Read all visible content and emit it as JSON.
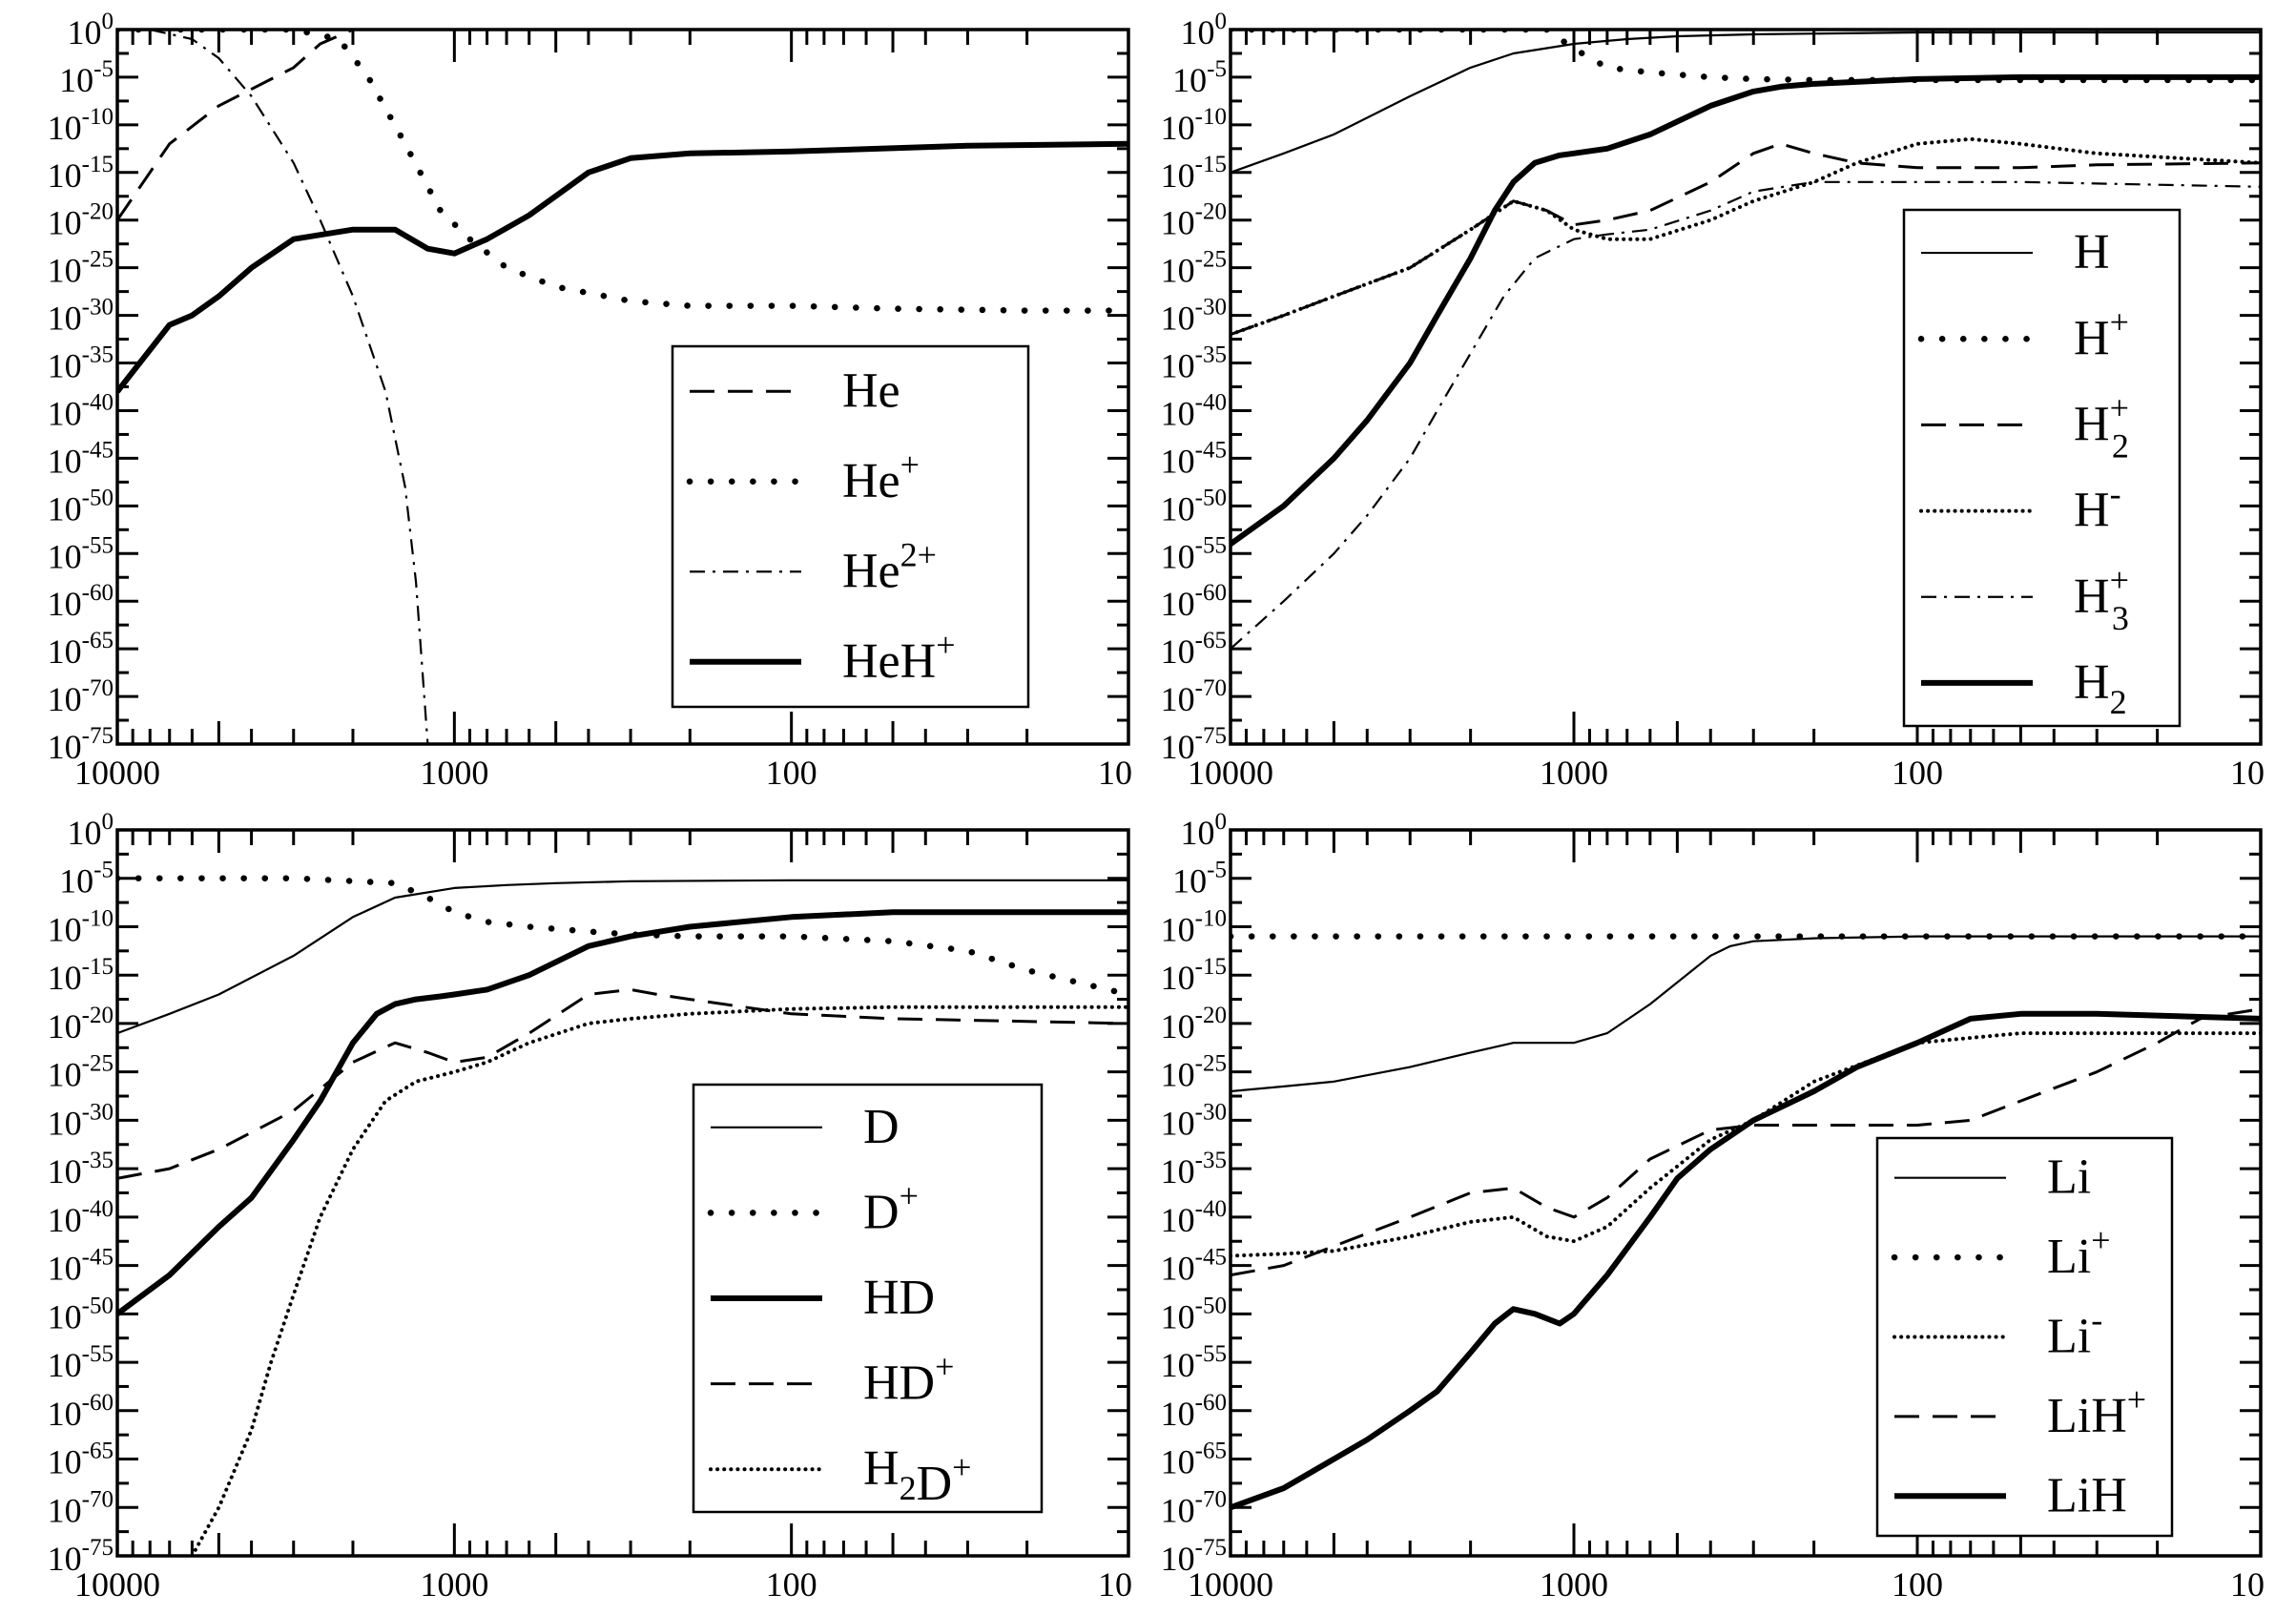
{
  "chart_data": [
    {
      "id": "helium",
      "type": "line",
      "xlim": [
        10000,
        10
      ],
      "ylim": [
        -75,
        0
      ],
      "x_ticks": [
        "10000",
        "1000",
        "100",
        "10"
      ],
      "y_ticks_exp": [
        "0",
        "-5",
        "-10",
        "-15",
        "-20",
        "-25",
        "-30",
        "-35",
        "-40",
        "-45",
        "-50",
        "-55",
        "-60",
        "-65",
        "-70",
        "-75"
      ],
      "legend_position": "bottom-right",
      "series": [
        {
          "name": "He",
          "name_parts": [
            [
              "He",
              "",
              ""
            ]
          ],
          "style": "dashed",
          "x": [
            10000,
            7000,
            5000,
            3000,
            2500,
            2000,
            1000,
            100,
            10
          ],
          "y": [
            -20,
            -12,
            -8,
            -4,
            -1.5,
            0,
            0,
            0,
            0
          ]
        },
        {
          "name": "He+",
          "name_parts": [
            [
              "He",
              "",
              "+"
            ]
          ],
          "style": "dotted",
          "x": [
            10000,
            5000,
            3000,
            2200,
            1800,
            1400,
            1100,
            900,
            700,
            500,
            300,
            200,
            100,
            50,
            20,
            10
          ],
          "y": [
            0,
            0,
            0,
            -1,
            -5,
            -12,
            -19,
            -22,
            -25,
            -27,
            -28.5,
            -29,
            -29,
            -29.3,
            -29.5,
            -29.5
          ]
        },
        {
          "name": "He2+",
          "name_parts": [
            [
              "He",
              "",
              "2+"
            ]
          ],
          "style": "dashdot",
          "x": [
            10000,
            8000,
            6000,
            5000,
            4000,
            3000,
            2500,
            2000,
            1600,
            1400,
            1300,
            1200
          ],
          "y": [
            0,
            0,
            -1,
            -3,
            -7,
            -14,
            -20,
            -28,
            -38,
            -48,
            -58,
            -75
          ]
        },
        {
          "name": "HeH+",
          "name_parts": [
            [
              "HeH",
              "",
              "+"
            ]
          ],
          "style": "thick",
          "x": [
            10000,
            7000,
            6000,
            5000,
            4000,
            3000,
            2000,
            1500,
            1200,
            1000,
            800,
            600,
            400,
            300,
            200,
            100,
            30,
            10
          ],
          "y": [
            -38,
            -31,
            -30,
            -28,
            -25,
            -22,
            -21,
            -21,
            -23,
            -23.5,
            -22,
            -19.5,
            -15,
            -13.5,
            -13,
            -12.8,
            -12.2,
            -12
          ]
        }
      ]
    },
    {
      "id": "hydrogen",
      "type": "line",
      "xlim": [
        10000,
        10
      ],
      "ylim": [
        -75,
        0
      ],
      "x_ticks": [
        "10000",
        "1000",
        "100",
        "10"
      ],
      "y_ticks_exp": [
        "0",
        "-5",
        "-10",
        "-15",
        "-20",
        "-25",
        "-30",
        "-35",
        "-40",
        "-45",
        "-50",
        "-55",
        "-60",
        "-65",
        "-70",
        "-75"
      ],
      "legend_position": "right",
      "series": [
        {
          "name": "H",
          "name_parts": [
            [
              "H",
              "",
              ""
            ]
          ],
          "style": "thin",
          "x": [
            10000,
            7000,
            5000,
            3000,
            2000,
            1500,
            1000,
            700,
            500,
            300,
            100,
            10
          ],
          "y": [
            -15,
            -13,
            -11,
            -7,
            -4,
            -2.5,
            -1.5,
            -1,
            -0.7,
            -0.5,
            -0.3,
            -0.3
          ]
        },
        {
          "name": "H+",
          "name_parts": [
            [
              "H",
              "",
              "+"
            ]
          ],
          "style": "dotted",
          "x": [
            10000,
            5000,
            3000,
            1200,
            1000,
            800,
            600,
            400,
            300,
            200,
            100,
            50,
            10
          ],
          "y": [
            0,
            0,
            0,
            0,
            -2,
            -4,
            -4.5,
            -5,
            -5.2,
            -5.3,
            -5.3,
            -5.3,
            -5.3
          ]
        },
        {
          "name": "H2+",
          "name_parts": [
            [
              "H",
              "2",
              "+"
            ]
          ],
          "style": "dashed",
          "x": [
            10000,
            7000,
            5000,
            3000,
            2000,
            1500,
            1200,
            1000,
            800,
            600,
            400,
            300,
            250,
            200,
            150,
            100,
            50,
            30,
            10
          ],
          "y": [
            -32,
            -30,
            -28,
            -25,
            -21,
            -18,
            -19,
            -20.5,
            -20,
            -19,
            -16,
            -13,
            -12,
            -13,
            -14,
            -14.5,
            -14.5,
            -14.2,
            -14
          ]
        },
        {
          "name": "H-",
          "name_parts": [
            [
              "H",
              "",
              "-"
            ]
          ],
          "style": "densedot",
          "x": [
            10000,
            7000,
            5000,
            3000,
            2000,
            1500,
            1200,
            1000,
            800,
            600,
            400,
            300,
            200,
            150,
            100,
            70,
            50,
            30,
            10
          ],
          "y": [
            -32,
            -30,
            -28,
            -25,
            -21,
            -18,
            -19,
            -21,
            -22,
            -22,
            -20,
            -18,
            -16,
            -14,
            -12,
            -11.5,
            -12,
            -13,
            -14
          ]
        },
        {
          "name": "H3+",
          "name_parts": [
            [
              "H",
              "3",
              "+"
            ]
          ],
          "style": "dashdot",
          "x": [
            10000,
            7000,
            5000,
            4000,
            3000,
            2500,
            2000,
            1600,
            1300,
            1000,
            800,
            600,
            400,
            300,
            200,
            100,
            50,
            10
          ],
          "y": [
            -65,
            -60,
            -55,
            -51,
            -45,
            -40,
            -34,
            -28,
            -24,
            -22,
            -21.5,
            -21,
            -19,
            -17,
            -16,
            -16,
            -16,
            -16.5
          ]
        },
        {
          "name": "H2",
          "name_parts": [
            [
              "H",
              "2",
              ""
            ]
          ],
          "style": "thick",
          "x": [
            10000,
            7000,
            5000,
            4000,
            3000,
            2500,
            2000,
            1700,
            1500,
            1300,
            1100,
            1000,
            800,
            600,
            400,
            300,
            250,
            200,
            100,
            50,
            10
          ],
          "y": [
            -54,
            -50,
            -45,
            -41,
            -35,
            -30,
            -24,
            -19,
            -16,
            -14,
            -13.2,
            -13,
            -12.5,
            -11,
            -8,
            -6.5,
            -6,
            -5.7,
            -5.2,
            -5,
            -5
          ]
        }
      ]
    },
    {
      "id": "deuterium",
      "type": "line",
      "xlim": [
        10000,
        10
      ],
      "ylim": [
        -75,
        0
      ],
      "x_ticks": [
        "10000",
        "1000",
        "100",
        "10"
      ],
      "y_ticks_exp": [
        "0",
        "-5",
        "-10",
        "-15",
        "-20",
        "-25",
        "-30",
        "-35",
        "-40",
        "-45",
        "-50",
        "-55",
        "-60",
        "-65",
        "-70",
        "-75"
      ],
      "legend_position": "bottom-right",
      "series": [
        {
          "name": "D",
          "name_parts": [
            [
              "D",
              "",
              ""
            ]
          ],
          "style": "thin",
          "x": [
            10000,
            7000,
            5000,
            3000,
            2000,
            1500,
            1000,
            700,
            500,
            300,
            100,
            10
          ],
          "y": [
            -21,
            -19,
            -17,
            -13,
            -9,
            -7,
            -6,
            -5.7,
            -5.5,
            -5.3,
            -5.2,
            -5.2
          ]
        },
        {
          "name": "D+",
          "name_parts": [
            [
              "D",
              "",
              "+"
            ]
          ],
          "style": "dotted",
          "x": [
            10000,
            5000,
            3000,
            1500,
            1200,
            1000,
            800,
            600,
            400,
            300,
            200,
            100,
            50,
            30,
            20,
            10
          ],
          "y": [
            -5,
            -5,
            -5,
            -5.5,
            -7,
            -8.5,
            -9.5,
            -10,
            -10.5,
            -10.8,
            -11,
            -11,
            -11.5,
            -12.5,
            -14.5,
            -17
          ]
        },
        {
          "name": "HD",
          "name_parts": [
            [
              "HD",
              "",
              ""
            ]
          ],
          "style": "thick",
          "x": [
            10000,
            7000,
            5000,
            4000,
            3000,
            2500,
            2000,
            1700,
            1500,
            1300,
            1100,
            1000,
            800,
            600,
            400,
            300,
            200,
            100,
            50,
            10
          ],
          "y": [
            -50,
            -46,
            -41,
            -38,
            -32,
            -28,
            -22,
            -19,
            -18,
            -17.5,
            -17.2,
            -17,
            -16.5,
            -15,
            -12,
            -11,
            -10,
            -9,
            -8.5,
            -8.5
          ]
        },
        {
          "name": "HD+",
          "name_parts": [
            [
              "HD",
              "",
              "+"
            ]
          ],
          "style": "dashed",
          "x": [
            10000,
            7000,
            5000,
            3000,
            2000,
            1500,
            1200,
            1000,
            800,
            600,
            400,
            300,
            250,
            200,
            100,
            50,
            10
          ],
          "y": [
            -36,
            -35,
            -33,
            -29,
            -24,
            -22,
            -23,
            -24,
            -23.5,
            -21,
            -17,
            -16.5,
            -17,
            -17.5,
            -19,
            -19.5,
            -20
          ]
        },
        {
          "name": "H2D+",
          "name_parts": [
            [
              "H",
              "2",
              ""
            ],
            [
              "D",
              "",
              "+"
            ]
          ],
          "style": "densedot",
          "x": [
            6000,
            5000,
            4000,
            3500,
            3000,
            2500,
            2000,
            1600,
            1300,
            1000,
            800,
            600,
            400,
            300,
            200,
            100,
            50,
            10
          ],
          "y": [
            -75,
            -70,
            -62,
            -55,
            -48,
            -40,
            -33,
            -28,
            -26,
            -25,
            -24,
            -22,
            -20,
            -19.5,
            -19,
            -18.5,
            -18.3,
            -18.3
          ]
        }
      ]
    },
    {
      "id": "lithium",
      "type": "line",
      "xlim": [
        10000,
        10
      ],
      "ylim": [
        -75,
        0
      ],
      "x_ticks": [
        "10000",
        "1000",
        "100",
        "10"
      ],
      "y_ticks_exp": [
        "0",
        "-5",
        "-10",
        "-15",
        "-20",
        "-25",
        "-30",
        "-35",
        "-40",
        "-45",
        "-50",
        "-55",
        "-60",
        "-65",
        "-70",
        "-75"
      ],
      "legend_position": "bottom-right",
      "series": [
        {
          "name": "Li",
          "name_parts": [
            [
              "Li",
              "",
              ""
            ]
          ],
          "style": "thin",
          "x": [
            10000,
            7000,
            5000,
            3000,
            2000,
            1500,
            1200,
            1000,
            800,
            600,
            400,
            350,
            300,
            200,
            100,
            50,
            10
          ],
          "y": [
            -27,
            -26.5,
            -26,
            -24.5,
            -23,
            -22,
            -22,
            -22,
            -21,
            -18,
            -13,
            -12,
            -11.5,
            -11.2,
            -11,
            -11,
            -11
          ]
        },
        {
          "name": "Li+",
          "name_parts": [
            [
              "Li",
              "",
              "+"
            ]
          ],
          "style": "dotted",
          "x": [
            10000,
            5000,
            1000,
            300,
            100,
            10
          ],
          "y": [
            -11,
            -11,
            -11,
            -11,
            -11,
            -11
          ]
        },
        {
          "name": "Li-",
          "name_parts": [
            [
              "Li",
              "",
              "-"
            ]
          ],
          "style": "densedot",
          "x": [
            10000,
            7000,
            5000,
            3000,
            2000,
            1500,
            1200,
            1000,
            800,
            600,
            400,
            300,
            200,
            100,
            50,
            20,
            10
          ],
          "y": [
            -44,
            -43.8,
            -43.5,
            -42,
            -40.5,
            -40,
            -42,
            -42.5,
            -41,
            -37,
            -32,
            -30,
            -26,
            -22,
            -21,
            -21,
            -21
          ]
        },
        {
          "name": "LiH+",
          "name_parts": [
            [
              "LiH",
              "",
              "+"
            ]
          ],
          "style": "dashed",
          "x": [
            10000,
            7000,
            5000,
            3000,
            2000,
            1500,
            1200,
            1000,
            800,
            600,
            400,
            300,
            200,
            100,
            70,
            50,
            30,
            20,
            15,
            10
          ],
          "y": [
            -46,
            -45,
            -43,
            -40,
            -37.5,
            -37,
            -39,
            -40,
            -38,
            -34,
            -31,
            -30.5,
            -30.5,
            -30.5,
            -30,
            -28,
            -25,
            -22,
            -19.5,
            -18.5
          ]
        },
        {
          "name": "LiH",
          "name_parts": [
            [
              "LiH",
              "",
              ""
            ]
          ],
          "style": "thick",
          "x": [
            10000,
            7000,
            5000,
            4000,
            3000,
            2500,
            2000,
            1700,
            1500,
            1300,
            1100,
            1000,
            800,
            600,
            500,
            400,
            300,
            200,
            150,
            100,
            70,
            50,
            30,
            10
          ],
          "y": [
            -70,
            -68,
            -65,
            -63,
            -60,
            -58,
            -54,
            -51,
            -49.5,
            -50,
            -51,
            -50,
            -46,
            -40,
            -36,
            -33,
            -30,
            -27,
            -24.5,
            -22,
            -19.5,
            -19,
            -19,
            -19.5
          ]
        }
      ]
    }
  ]
}
